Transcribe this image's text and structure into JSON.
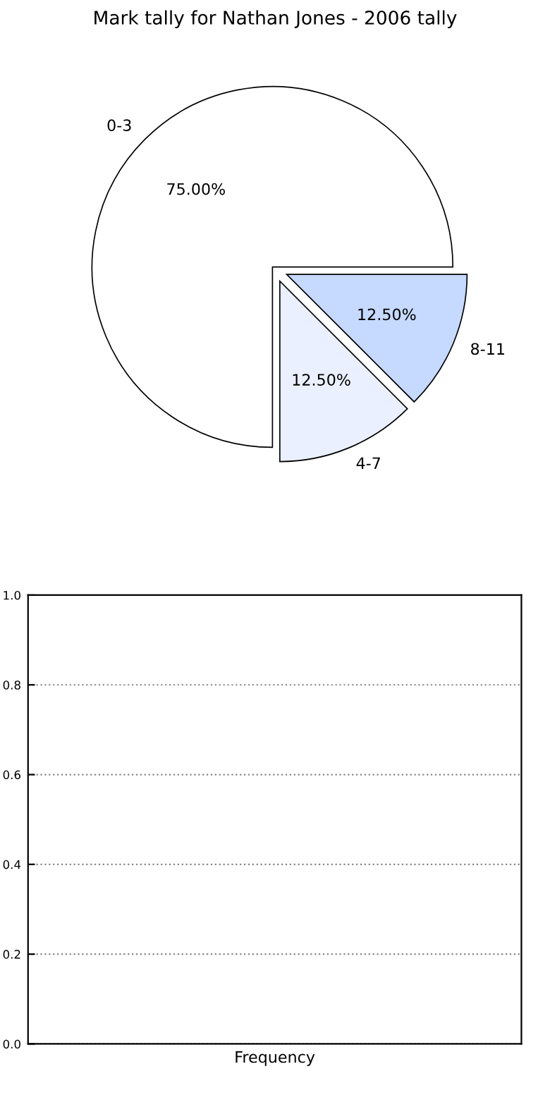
{
  "chart_data": [
    {
      "type": "pie",
      "title": "Mark tally for Nathan Jones - 2006 tally",
      "categories": [
        "0-3",
        "4-7",
        "8-11"
      ],
      "values": [
        75,
        12.5,
        12.5
      ],
      "colors": [
        "#ffffff",
        "#eaf0ff",
        "#c6d9ff"
      ],
      "value_labels": [
        "75.00%",
        "12.50%",
        "12.50%"
      ]
    },
    {
      "type": "bar",
      "categories": [
        "Frequency"
      ],
      "values": [
        0
      ],
      "ylim": [
        0,
        1.0
      ],
      "yticks": [
        {
          "value": 0,
          "label": "0.0"
        },
        0.2,
        0.4,
        0.6,
        0.8,
        {
          "value": 1.0,
          "label": "1.0"
        }
      ],
      "grid": "y"
    }
  ]
}
